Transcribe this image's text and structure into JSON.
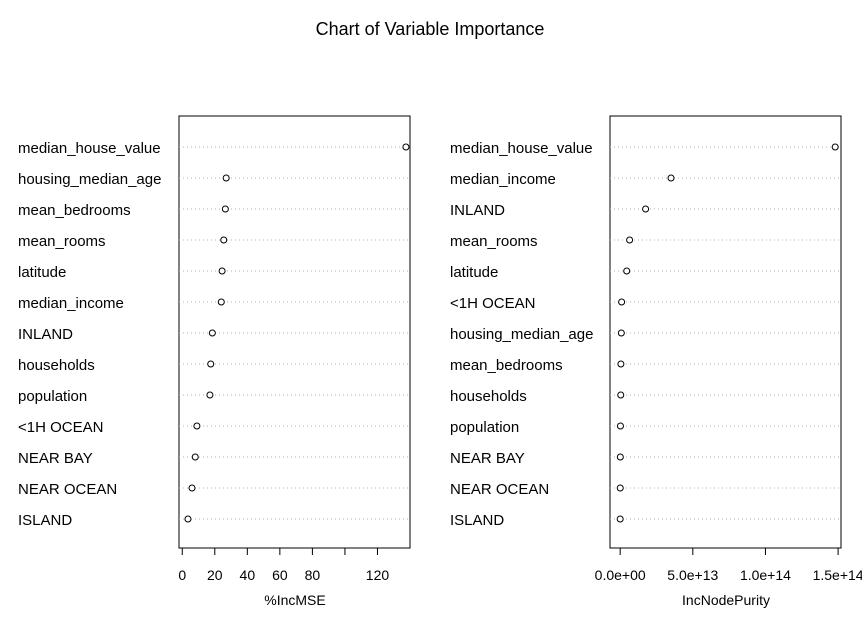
{
  "chart_data": {
    "type": "dotchart",
    "title": "Chart of Variable Importance",
    "grid": "dotted-horizontal",
    "panels": [
      {
        "xlabel": "%IncMSE",
        "xlim": [
          -2,
          140
        ],
        "ticks": [
          0,
          20,
          40,
          60,
          80,
          100,
          120
        ],
        "tick_labels": [
          "0",
          "20",
          "40",
          "60",
          "80",
          "",
          "120"
        ],
        "categories": [
          "median_house_value",
          "housing_median_age",
          "mean_bedrooms",
          "mean_rooms",
          "latitude",
          "median_income",
          "INLAND",
          "households",
          "population",
          "<1H OCEAN",
          "NEAR BAY",
          "NEAR OCEAN",
          "ISLAND"
        ],
        "values": [
          137.5,
          27,
          26.5,
          25.5,
          24.5,
          24,
          18.5,
          17.5,
          17,
          9,
          8,
          6,
          3.5
        ]
      },
      {
        "xlabel": "IncNodePurity",
        "xlim": [
          -7000000000000.0,
          152000000000000.0
        ],
        "ticks": [
          0,
          50000000000000.0,
          100000000000000.0,
          150000000000000.0
        ],
        "tick_labels": [
          "0.0e+00",
          "5.0e+13",
          "1.0e+14",
          "1.5e+14"
        ],
        "categories": [
          "median_house_value",
          "median_income",
          "INLAND",
          "mean_rooms",
          "latitude",
          "<1H OCEAN",
          "housing_median_age",
          "mean_bedrooms",
          "households",
          "population",
          "NEAR BAY",
          "NEAR OCEAN",
          "ISLAND"
        ],
        "values": [
          148000000000000.0,
          35000000000000.0,
          17500000000000.0,
          6500000000000.0,
          4500000000000.0,
          1000000000000.0,
          800000000000.0,
          500000000000.0,
          400000000000.0,
          200000000000.0,
          100000000000.0,
          50000000000.0,
          10000000000.0
        ]
      }
    ]
  }
}
